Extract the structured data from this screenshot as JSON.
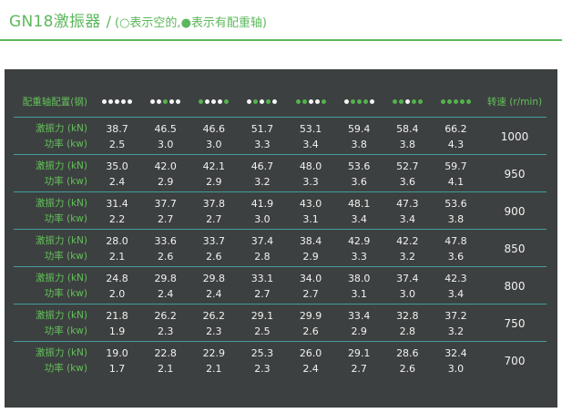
{
  "title": {
    "model": "GN18激振器",
    "separator": "/",
    "legend": "(○表示空的,●表示有配重轴)"
  },
  "legend_symbols": {
    "empty": "○",
    "filled": "●"
  },
  "table": {
    "config_label": "配重轴配置(钢)",
    "speed_label": "转速 (r/min)",
    "force_label": "激振力 (kN)",
    "power_label": "功率 (kw)",
    "dot_patterns": [
      [
        "empty",
        "empty",
        "empty",
        "empty",
        "empty"
      ],
      [
        "empty",
        "empty",
        "filled",
        "empty",
        "empty"
      ],
      [
        "filled",
        "empty",
        "empty",
        "empty",
        "filled"
      ],
      [
        "empty",
        "filled",
        "empty",
        "filled",
        "empty"
      ],
      [
        "filled",
        "filled",
        "empty",
        "empty",
        "filled"
      ],
      [
        "empty",
        "filled",
        "filled",
        "filled",
        "empty"
      ],
      [
        "filled",
        "filled",
        "empty",
        "filled",
        "filled"
      ],
      [
        "filled",
        "filled",
        "filled",
        "filled",
        "filled"
      ]
    ],
    "rows": [
      {
        "speed": "1000",
        "force": [
          "38.7",
          "46.5",
          "46.6",
          "51.7",
          "53.1",
          "59.4",
          "58.4",
          "66.2"
        ],
        "power": [
          "2.5",
          "3.0",
          "3.0",
          "3.3",
          "3.4",
          "3.8",
          "3.8",
          "4.3"
        ]
      },
      {
        "speed": "950",
        "force": [
          "35.0",
          "42.0",
          "42.1",
          "46.7",
          "48.0",
          "53.6",
          "52.7",
          "59.7"
        ],
        "power": [
          "2.4",
          "2.9",
          "2.9",
          "3.2",
          "3.3",
          "3.6",
          "3.6",
          "4.1"
        ]
      },
      {
        "speed": "900",
        "force": [
          "31.4",
          "37.7",
          "37.8",
          "41.9",
          "43.0",
          "48.1",
          "47.3",
          "53.6"
        ],
        "power": [
          "2.2",
          "2.7",
          "2.7",
          "3.0",
          "3.1",
          "3.4",
          "3.4",
          "3.8"
        ]
      },
      {
        "speed": "850",
        "force": [
          "28.0",
          "33.6",
          "33.7",
          "37.4",
          "38.4",
          "42.9",
          "42.2",
          "47.8"
        ],
        "power": [
          "2.1",
          "2.6",
          "2.6",
          "2.8",
          "2.9",
          "3.3",
          "3.2",
          "3.6"
        ]
      },
      {
        "speed": "800",
        "force": [
          "24.8",
          "29.8",
          "29.8",
          "33.1",
          "34.0",
          "38.0",
          "37.4",
          "42.3"
        ],
        "power": [
          "2.0",
          "2.4",
          "2.4",
          "2.7",
          "2.7",
          "3.1",
          "3.0",
          "3.4"
        ]
      },
      {
        "speed": "750",
        "force": [
          "21.8",
          "26.2",
          "26.2",
          "29.1",
          "29.9",
          "33.4",
          "32.8",
          "37.2"
        ],
        "power": [
          "1.9",
          "2.3",
          "2.3",
          "2.5",
          "2.6",
          "2.9",
          "2.8",
          "3.2"
        ]
      },
      {
        "speed": "700",
        "force": [
          "19.0",
          "22.8",
          "22.9",
          "25.3",
          "26.0",
          "29.1",
          "28.6",
          "32.4"
        ],
        "power": [
          "1.7",
          "2.1",
          "2.1",
          "2.3",
          "2.4",
          "2.7",
          "2.6",
          "3.0"
        ]
      }
    ]
  },
  "colors": {
    "accent_green": "#5cb85c",
    "label_green": "#63c05b",
    "panel_bg": "#3d4040",
    "divider_teal": "#3fa09b",
    "value_text": "#f1f2f1",
    "dot_empty": "#f5f5f5",
    "dot_filled": "#55b24e"
  }
}
